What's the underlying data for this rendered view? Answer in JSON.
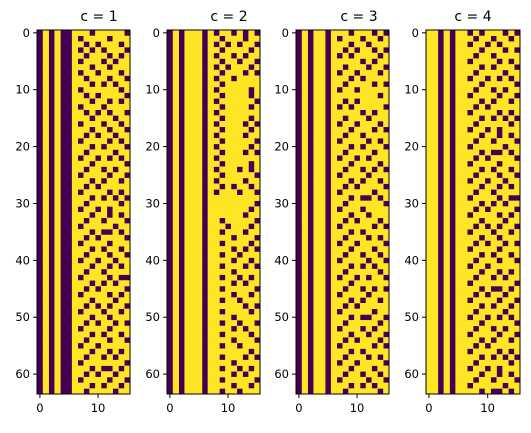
{
  "chart_data": {
    "type": "heatmap",
    "colormap": "viridis (binary)",
    "colors": {
      "zero": "#440154",
      "one": "#FDE725"
    },
    "rows": 64,
    "cols": 16,
    "x_ticks": [
      0,
      10
    ],
    "y_ticks": [
      0,
      10,
      20,
      30,
      40,
      50,
      60
    ],
    "panels": [
      {
        "title": "c = 1",
        "matrix": [
          "0101001110111110",
          "0101001011110111",
          "0101001101011101",
          "0101001010101110",
          "0101001101110101",
          "0101001011101011",
          "0101001110110111",
          "0101001011011101",
          "0101001101110110",
          "0101001110101011",
          "0101001011111101",
          "0101001101011110",
          "0101001110110101",
          "0101001011101111",
          "0101001101010110",
          "0101001110111011",
          "0101001011101101",
          "0101001110110110",
          "0101001101011011",
          "0101001011110101",
          "0101001110101110",
          "0101001101111011",
          "0101001011010101",
          "0101001110111110",
          "0101001101101011",
          "0101001011110110",
          "0101001110101101",
          "0101001101011111",
          "0101001011110101",
          "0101001110101010",
          "0101001101111101",
          "0101001011010111",
          "0101001110110101",
          "0101001101101110",
          "0101001011111011",
          "0101001110100101",
          "0101001101011110",
          "0101001011110111",
          "0101001110101101",
          "0101001101110110",
          "0101001011011011",
          "0101001110110101",
          "0101001101101111",
          "0101001011110100",
          "0101001110101011",
          "0101001101011110",
          "0101001011110101",
          "0101001110111011",
          "0101001101010110",
          "0101001011101101",
          "0101001110110111",
          "0101001101011010",
          "0101001011110111",
          "0101001110101101",
          "0101001101110110",
          "0101001011011111",
          "0101001110110101",
          "0101001101101011",
          "0101001011111110",
          "0101001110100101",
          "0101001101011011",
          "0101001011110110",
          "0101001110101101",
          "0101001101111011"
        ]
      },
      {
        "title": "c = 2",
        "matrix": [
          "0101110101101010",
          "0101110110111011",
          "0101110101010110",
          "0101110110111101",
          "0101110101101011",
          "0101110110110110",
          "0101110101011101",
          "0101110110111010",
          "0101110101101111",
          "0101110110111111",
          "0101110101111101",
          "0101110110111101",
          "0101110101111110",
          "0101110110111101",
          "0101110101111111",
          "0101110110111101",
          "0101110101111010",
          "0101110110111101",
          "0101110101111011",
          "0101110110111110",
          "0101110101111101",
          "0101110110111010",
          "0101110101111111",
          "0101110110111101",
          "0101110101110101",
          "0101110110111110",
          "0101110101111011",
          "0101110110101101",
          "0101110101110110",
          "0101110111111111",
          "0101110111111110",
          "0101110111111101",
          "0101110111111011",
          "0101110110111110",
          "0101110111011101",
          "0101110110111011",
          "0101110111101110",
          "0101110110111101",
          "0101110111101010",
          "0101110110110111",
          "0101110111101101",
          "0101110110111010",
          "0101110111101111",
          "0101110110110101",
          "0101110111101011",
          "0101110110111110",
          "0101110111101101",
          "0101110110110111",
          "0101110111111010",
          "0101110110111101",
          "0101110111101111",
          "0101110110110110",
          "0101110111101011",
          "0101110110111101",
          "0101110111101110",
          "0101110110110111",
          "0101110111111101",
          "0101110110111010",
          "0101110111101111",
          "0101110110110101",
          "0101110111101011",
          "0101110110111110",
          "0101110111101101",
          "0101110110110111"
        ]
      },
      {
        "title": "c = 3",
        "matrix": [
          "0101101110111010",
          "0101101011101101",
          "0101101110110111",
          "0101101101011010",
          "0101101010111101",
          "0101101111101011",
          "0101101101110110",
          "0101101011011101",
          "0101101110101111",
          "0101101101111010",
          "0101101011011111",
          "0101101111111101",
          "0101101101011111",
          "0101101010111110",
          "0101101111101011",
          "0101101101110111",
          "0101101011011101",
          "0101101110111010",
          "0101101101101111",
          "0101101011110101",
          "0101101110101110",
          "0101101101111011",
          "0101101011010111",
          "0101101110111101",
          "0101101101101010",
          "0101101011110111",
          "0101101110101101",
          "0101101101011110",
          "0101101011111011",
          "0101101110100101",
          "0101101101111110",
          "0101101011101111",
          "0101101110110111",
          "0101101101011101",
          "0101101011111010",
          "0101101110101111",
          "0101101101110101",
          "0101101011011110",
          "0101101110111011",
          "0101101101101101",
          "0101101011110110",
          "0101101110101011",
          "0101101101111101",
          "0101101011010110",
          "0101101110111111",
          "0101101101101010",
          "0101101011110111",
          "0101101110101101",
          "0101101101011111",
          "0101101011111011",
          "0101101110100110",
          "0101101101111101",
          "0101101011101011",
          "0101101110110110",
          "0101101101011101",
          "0101101011111010",
          "0101101110101111",
          "0101101101110101",
          "0101101011011110",
          "0101101110111011",
          "0101101101101101",
          "0101101011110110",
          "0101101110101011",
          "0101101101111101"
        ]
      },
      {
        "title": "c = 4",
        "matrix": [
          "1101011010111010",
          "1101011101101101",
          "1101011011010111",
          "1101011110111010",
          "1101011101101111",
          "1101011011110101",
          "1101011110101110",
          "1101011101111011",
          "1101011011010101",
          "1101011110111110",
          "1101011101101011",
          "1101011011110110",
          "1101011110101101",
          "1101011101011111",
          "1101011011110101",
          "1101011110101010",
          "1101011101111101",
          "1101011011010111",
          "1101011110110101",
          "1101011101101110",
          "1101011011111011",
          "1101011110100101",
          "1101011101011110",
          "1101011011110111",
          "1101011110101101",
          "1101011101110110",
          "1101011011011011",
          "1101011110110101",
          "1101011101101111",
          "1101011011110100",
          "1101011110101011",
          "1101011101011110",
          "1101011011110101",
          "1101011110111011",
          "1101011101010110",
          "1101011011101101",
          "1101011110110111",
          "1101011101011010",
          "1101011011110111",
          "1101011110101101",
          "1101011101110110",
          "1101011011011111",
          "1101011110110101",
          "1101011101101011",
          "1101011011111110",
          "1101011110100101",
          "1101011101011011",
          "1101011011110110",
          "1101011110101101",
          "1101011101111011",
          "1101011011010101",
          "1101011110111110",
          "1101011101101011",
          "1101011011110110",
          "1101011110101101",
          "1101011101011111",
          "1101011011110101",
          "1101011110101010",
          "1101011101111101",
          "1101011011010111",
          "1101011110110101",
          "1101011101101110",
          "1101011011111011",
          "1101011110100101"
        ]
      }
    ]
  }
}
